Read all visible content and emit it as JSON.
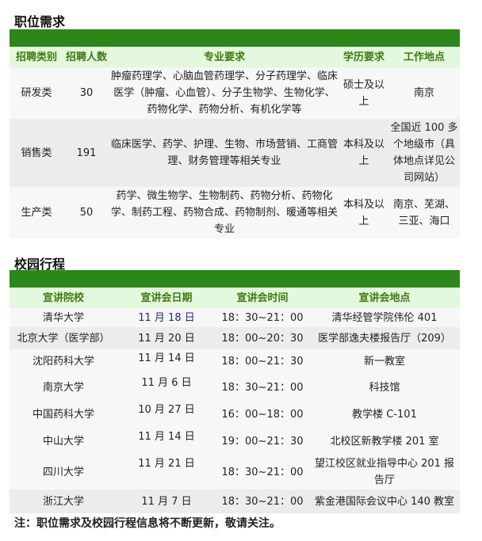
{
  "jobs": {
    "title": "职位需求",
    "headers": [
      "招聘类别",
      "招聘人数",
      "专业要求",
      "学历要求",
      "工作地点"
    ],
    "rows": [
      {
        "category": "研发类",
        "count": "30",
        "majors": "肿瘤药理学、心脑血管药理学、分子药理学、临床医学（肿瘤、心血管）、分子生物学、生物化学、药物化学、药物分析、有机化学等",
        "education": "硕士及以上",
        "location": "南京"
      },
      {
        "category": "销售类",
        "count": "191",
        "majors": "临床医学、药学、护理、生物、市场营销、工商管理、财务管理等相关专业",
        "education": "本科及以上",
        "location": "全国近 100 多个地级市（具体地点详见公司网站）"
      },
      {
        "category": "生产类",
        "count": "50",
        "majors": "药学、微生物学、生物制药、药物分析、药物化学、制药工程、药物合成、药物制剂、暖通等相关专业",
        "education": "本科及以上",
        "location": "南京、芜湖、三亚、海口"
      }
    ]
  },
  "campus": {
    "title": "校园行程",
    "headers": [
      "宣讲院校",
      "宣讲会日期",
      "宣讲会时间",
      "宣讲会地点"
    ],
    "rows": [
      {
        "school": "清华大学",
        "date": "11 月 18 日",
        "time": "18：30~21：00",
        "place": "清华经管学院伟伦 401"
      },
      {
        "school": "北京大学（医学部）",
        "date": "11 月 20 日",
        "time": "18：00~20：30",
        "place": "医学部逸夫楼报告厅（209）"
      },
      {
        "school": "沈阳药科大学",
        "date": "11 月 14 日",
        "time": "18：00~21：30",
        "place": "新一教室"
      },
      {
        "school": "南京大学",
        "date": "11 月 6 日",
        "time": "18：30~21：00",
        "place": "科技馆"
      },
      {
        "school": "中国药科大学",
        "date": "10 月 27 日",
        "time": "16：00~18：00",
        "place": "教学楼 C-101"
      },
      {
        "school": "中山大学",
        "date": "11 月 14 日",
        "time": "19：00~21：30",
        "place": "北校区新教学楼 201 室"
      },
      {
        "school": "四川大学",
        "date": "11 月 21 日",
        "time": "18：30~21：00",
        "place": "望江校区就业指导中心 201 报告厅"
      },
      {
        "school": "浙江大学",
        "date": "11 月 7 日",
        "time": "18：30~21：00",
        "place": "紫金港国际会议中心 140 教室"
      }
    ]
  },
  "note": "注：职位需求及校园行程信息将不断更新，敬请关注。",
  "colors": {
    "bar": "#2c871a",
    "header_bg": "#e3f8dc",
    "header_text": "#3f7a10"
  }
}
